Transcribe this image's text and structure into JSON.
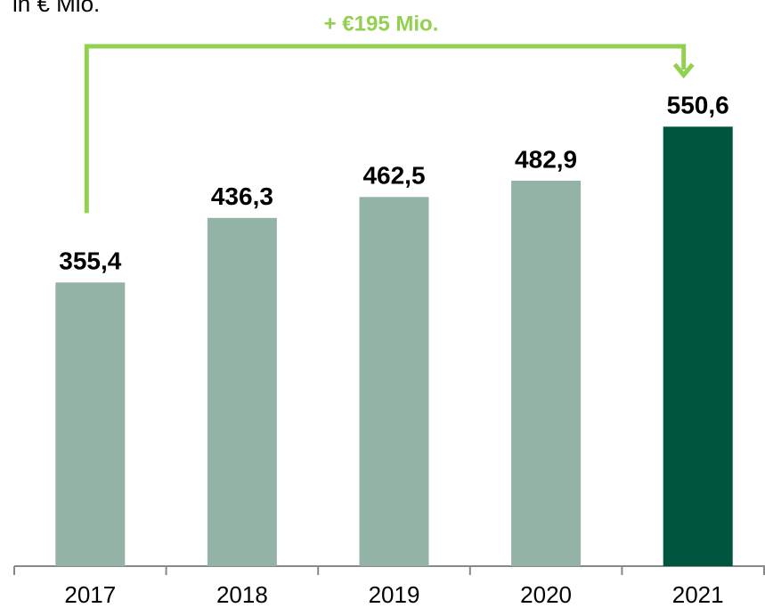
{
  "chart_data": {
    "type": "bar",
    "title": "in € Mio.",
    "annotation": "+ €195 Mio.",
    "categories": [
      "2017",
      "2018",
      "2019",
      "2020",
      "2021"
    ],
    "values": [
      355.4,
      436.3,
      462.5,
      482.9,
      550.6
    ],
    "value_labels": [
      "355,4",
      "436,3",
      "462,5",
      "482,9",
      "550,6"
    ],
    "colors": [
      "#93b3a7",
      "#93b3a7",
      "#93b3a7",
      "#93b3a7",
      "#00553f"
    ],
    "annotation_color": "#92d050",
    "ylim": [
      0,
      600
    ]
  }
}
